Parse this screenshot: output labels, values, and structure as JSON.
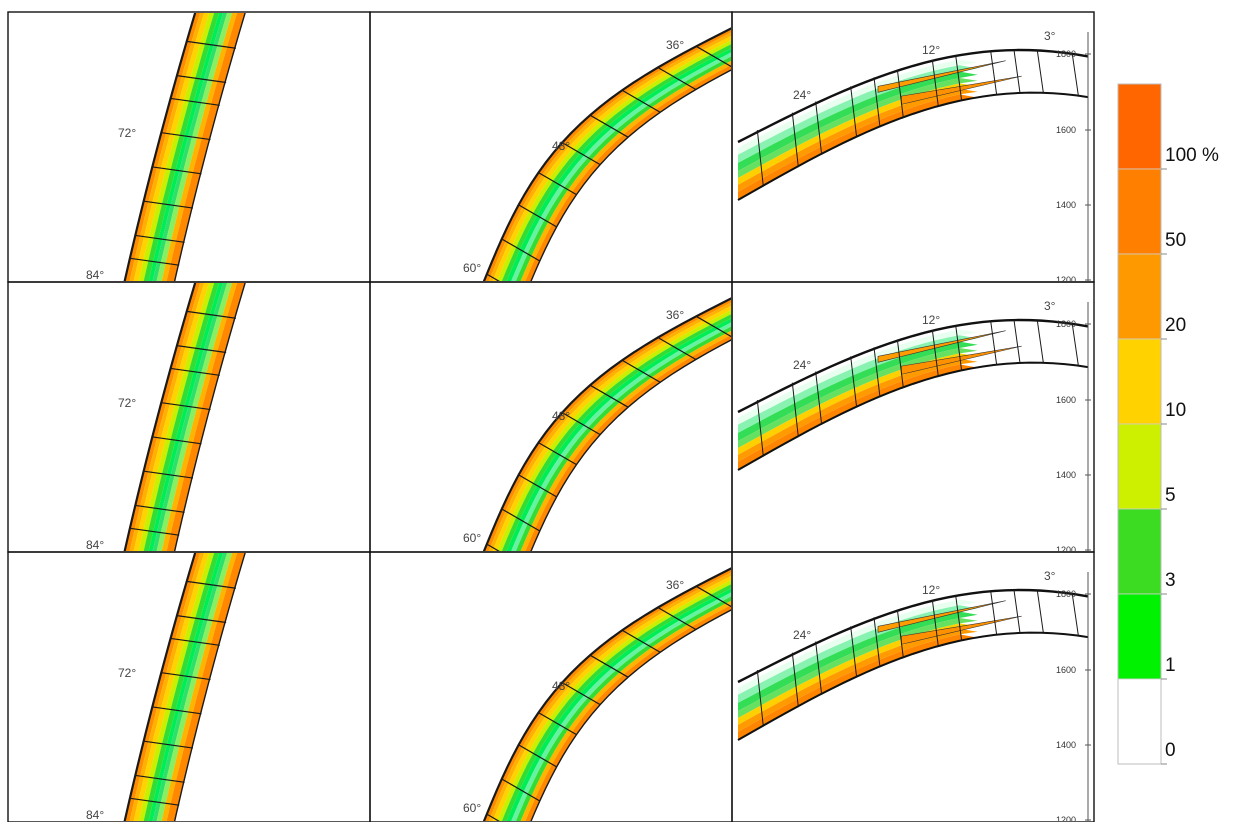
{
  "angle_labels": {
    "left": [
      "72°",
      "84°"
    ],
    "middle": [
      "36°",
      "48°",
      "60°"
    ],
    "right": [
      "3°",
      "12°",
      "24°"
    ]
  },
  "depth_ticks": [
    "1800",
    "1600",
    "1400",
    "1200"
  ],
  "legend": {
    "labels": [
      "100 %",
      "50",
      "20",
      "10",
      "5",
      "3",
      "1",
      "0"
    ],
    "colors": [
      "#ff6600",
      "#ff7f00",
      "#ff9900",
      "#ffd200",
      "#ccf000",
      "#3cdc22",
      "#00f200",
      "#ffffff"
    ]
  }
}
